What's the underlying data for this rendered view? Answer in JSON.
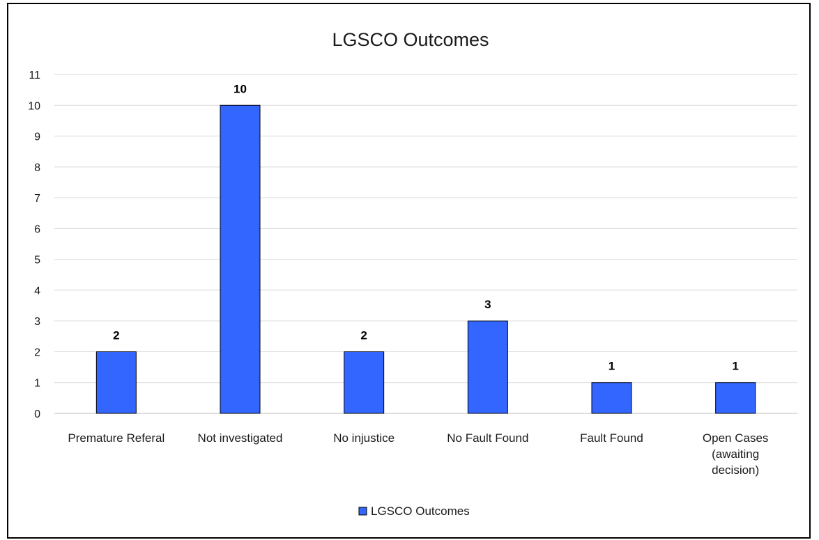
{
  "chart_data": {
    "type": "bar",
    "title": "LGSCO Outcomes",
    "categories": [
      [
        "Premature Referal"
      ],
      [
        "Not investigated"
      ],
      [
        "No injustice"
      ],
      [
        "No Fault Found"
      ],
      [
        "Fault Found"
      ],
      [
        "Open Cases",
        "(awaiting",
        "decision)"
      ]
    ],
    "series": [
      {
        "name": "LGSCO Outcomes",
        "values": [
          2,
          10,
          2,
          3,
          1,
          1
        ]
      }
    ],
    "ylim": [
      0,
      11
    ],
    "yticks": [
      0,
      1,
      2,
      3,
      4,
      5,
      6,
      7,
      8,
      9,
      10,
      11
    ],
    "grid": true,
    "legend": "bottom",
    "data_labels": true,
    "colors": {
      "bar": "#3366ff",
      "bar_edge": "#000000",
      "grid": "#d9d9d9",
      "axis": "#bfbfbf"
    }
  }
}
